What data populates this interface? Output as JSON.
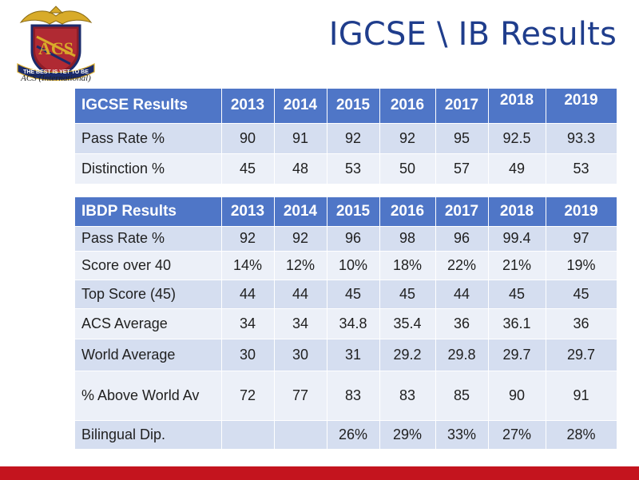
{
  "slide": {
    "title": "IGCSE \\ IB Results",
    "logo": {
      "motto": "THE BEST IS YET TO BE",
      "monogram": "ACS",
      "caption": "ACS (International)",
      "icon": "school-crest-icon",
      "colors": {
        "gold": "#d8ab2a",
        "maroon": "#8c1d28",
        "navy": "#1b2b6b"
      }
    },
    "accent_color": "#c4141e"
  },
  "igcse": {
    "header": {
      "label": "IGCSE Results",
      "years": [
        "2013",
        "2014",
        "2015",
        "2016",
        "2017",
        "2018",
        "2019"
      ]
    },
    "rows": [
      {
        "label": "Pass Rate %",
        "values": [
          "90",
          "91",
          "92",
          "92",
          "95",
          "92.5",
          "93.3"
        ]
      },
      {
        "label": "Distinction %",
        "values": [
          "45",
          "48",
          "53",
          "50",
          "57",
          "49",
          "53"
        ]
      }
    ]
  },
  "ibdp": {
    "header": {
      "label": "IBDP Results",
      "years": [
        "2013",
        "2014",
        "2015",
        "2016",
        "2017",
        "2018",
        "2019"
      ]
    },
    "rows": [
      {
        "label": "Pass Rate %",
        "values": [
          "92",
          "92",
          "96",
          "98",
          "96",
          "99.4",
          "97"
        ]
      },
      {
        "label": "Score over 40",
        "values": [
          "14%",
          "12%",
          "10%",
          "18%",
          "22%",
          "21%",
          "19%"
        ]
      },
      {
        "label": "Top Score (45)",
        "values": [
          "44",
          "44",
          "45",
          "45",
          "44",
          "45",
          "45"
        ]
      },
      {
        "label": "ACS Average",
        "values": [
          "34",
          "34",
          "34.8",
          "35.4",
          "36",
          "36.1",
          "36"
        ]
      },
      {
        "label": "World Average",
        "values": [
          "30",
          "30",
          "31",
          "29.2",
          "29.8",
          "29.7",
          "29.7"
        ]
      },
      {
        "label": "% Above World Av",
        "values": [
          "72",
          "77",
          "83",
          "83",
          "85",
          "90",
          "91"
        ]
      },
      {
        "label": "Bilingual Dip.",
        "values": [
          "",
          "",
          "26%",
          "29%",
          "33%",
          "27%",
          "28%"
        ]
      }
    ]
  }
}
